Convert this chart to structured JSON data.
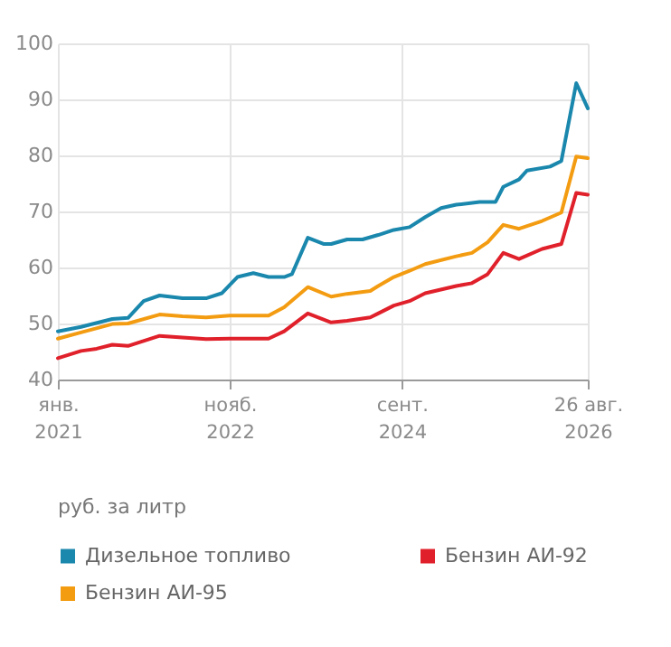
{
  "chart_data": {
    "type": "line",
    "annotations": [
      "руб. за литр"
    ],
    "xlim": [
      "2021-01",
      "2026-08-26"
    ],
    "xticks": [
      {
        "value": "2021-01",
        "label": "янв. 2021"
      },
      {
        "value": "2022-11",
        "label": "нояб. 2022"
      },
      {
        "value": "2024-09",
        "label": "сент. 2024"
      },
      {
        "value": "2026-08-26",
        "label": "26 авг. 2026"
      }
    ],
    "ylim": [
      40,
      100
    ],
    "yticks": [
      40,
      50,
      60,
      70,
      80,
      90,
      100
    ],
    "grid": true,
    "legend": "bottom",
    "series": [
      {
        "name": "Дизельное топливо",
        "color": "#1a87ad",
        "x": [
          "2021-01",
          "2021-04",
          "2021-08",
          "2021-10",
          "2021-12",
          "2022-02",
          "2022-05",
          "2022-08",
          "2022-10",
          "2022-12",
          "2023-02",
          "2023-04",
          "2023-06",
          "2023-07",
          "2023-09",
          "2023-11",
          "2023-12",
          "2024-02",
          "2024-04",
          "2024-06",
          "2024-08",
          "2024-10",
          "2024-12",
          "2025-02",
          "2025-04",
          "2025-07",
          "2025-09",
          "2025-10",
          "2025-12",
          "2026-01",
          "2026-04",
          "2026-05-15",
          "2026-07-12",
          "2026-08-26"
        ],
        "values": [
          48.6,
          49.4,
          50.8,
          51,
          54,
          55,
          54.5,
          54.5,
          55.4,
          58.3,
          59,
          58.3,
          58.3,
          58.8,
          65.3,
          64.2,
          64.2,
          65,
          65,
          65.8,
          66.7,
          67.2,
          69,
          70.6,
          71.2,
          71.7,
          71.7,
          74.4,
          75.7,
          77.3,
          78,
          79,
          92.9,
          88.4
        ]
      },
      {
        "name": "Бензин АИ-92",
        "color": "#e0202a",
        "x": [
          "2021-01",
          "2021-04",
          "2021-06",
          "2021-08",
          "2021-10",
          "2022-02",
          "2022-05",
          "2022-08",
          "2022-11",
          "2023-04",
          "2023-06",
          "2023-09",
          "2023-12",
          "2024-02",
          "2024-05",
          "2024-06",
          "2024-08",
          "2024-10",
          "2024-12",
          "2025-04",
          "2025-06",
          "2025-08",
          "2025-10",
          "2025-12",
          "2026-03",
          "2026-05-15",
          "2026-07-12",
          "2026-08-26"
        ],
        "values": [
          43.8,
          45.1,
          45.5,
          46.2,
          46,
          47.8,
          47.5,
          47.2,
          47.3,
          47.3,
          48.6,
          51.8,
          50.2,
          50.5,
          51.1,
          51.8,
          53.2,
          54,
          55.4,
          56.7,
          57.2,
          58.8,
          62.6,
          61.5,
          63.3,
          64.2,
          73.3,
          73
        ]
      },
      {
        "name": "Бензин АИ-95",
        "color": "#f39c12",
        "x": [
          "2021-01",
          "2021-04",
          "2021-08",
          "2021-10",
          "2022-02",
          "2022-05",
          "2022-08",
          "2022-11",
          "2023-04",
          "2023-06",
          "2023-09",
          "2023-12",
          "2024-02",
          "2024-05",
          "2024-06",
          "2024-08",
          "2024-10",
          "2024-12",
          "2025-04",
          "2025-06",
          "2025-08",
          "2025-10",
          "2025-12",
          "2026-03",
          "2026-05-15",
          "2026-07-12",
          "2026-08-26"
        ],
        "values": [
          47.3,
          48.4,
          49.9,
          50,
          51.6,
          51.3,
          51.1,
          51.4,
          51.4,
          52.9,
          56.5,
          54.8,
          55.3,
          55.8,
          56.7,
          58.3,
          59.4,
          60.6,
          62,
          62.6,
          64.5,
          67.6,
          66.9,
          68.3,
          69.8,
          79.8,
          79.5
        ]
      }
    ]
  }
}
